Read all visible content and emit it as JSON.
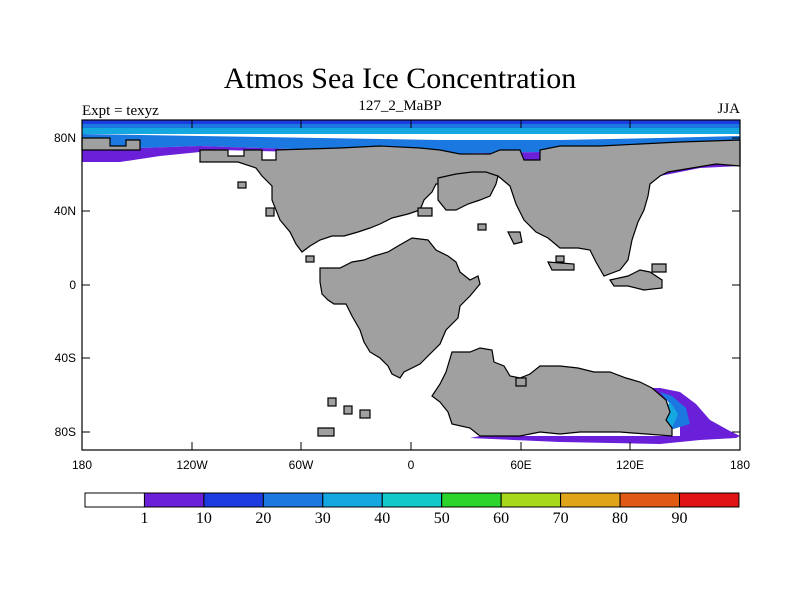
{
  "title": "Atmos Sea Ice Concentration",
  "left_label": "Expt = texyz",
  "center_label": "127_2_MaBP",
  "right_label": "JJA",
  "y_ticks": [
    "80N",
    "40N",
    "0",
    "40S",
    "80S"
  ],
  "x_ticks": [
    "180",
    "120W",
    "60W",
    "0",
    "60E",
    "120E",
    "180"
  ],
  "colorbar": {
    "colors": [
      "#ffffff",
      "#6a1fd8",
      "#1d3ce0",
      "#1a78e0",
      "#15a8e0",
      "#12c8c8",
      "#2cd42c",
      "#a8d81a",
      "#e0a418",
      "#e05a14",
      "#e01414"
    ],
    "labels": [
      "1",
      "10",
      "20",
      "30",
      "40",
      "50",
      "60",
      "70",
      "80",
      "90"
    ]
  },
  "colors": {
    "land": "#a0a0a0",
    "ocean": "#ffffff"
  }
}
